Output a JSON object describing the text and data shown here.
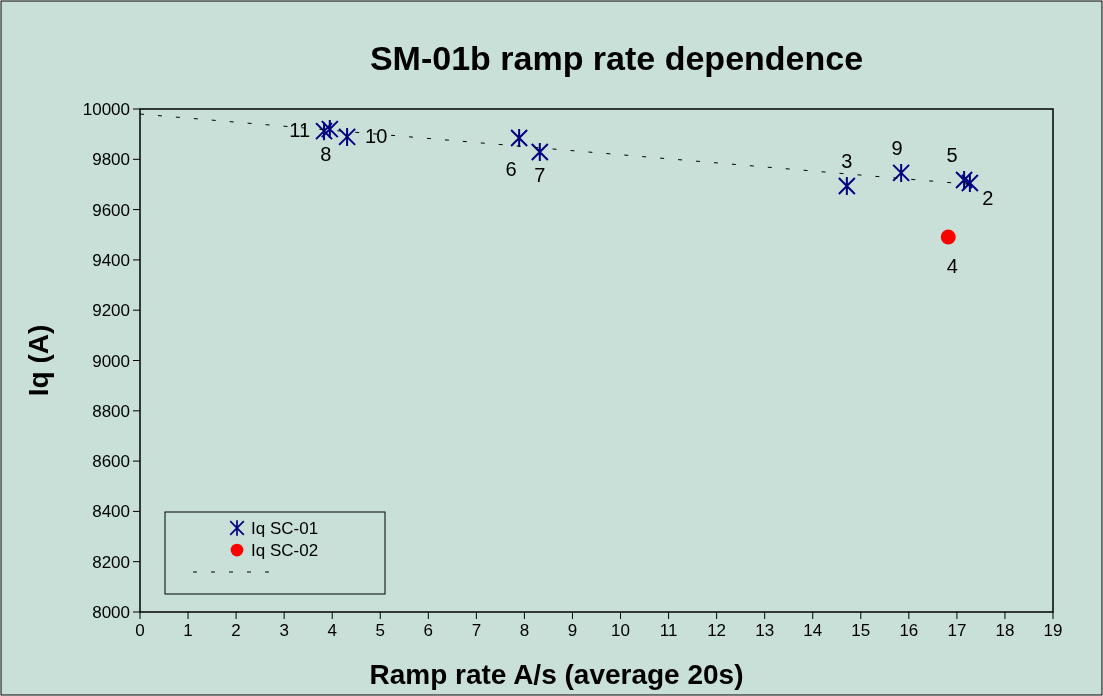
{
  "chart_data": {
    "type": "scatter",
    "title": "SM-01b ramp rate dependence",
    "xlabel": "Ramp rate A/s (average 20s)",
    "ylabel": "Iq (A)",
    "xlim": [
      0,
      19
    ],
    "xticks": [
      0,
      1,
      2,
      3,
      4,
      5,
      6,
      7,
      8,
      9,
      10,
      11,
      12,
      13,
      14,
      15,
      16,
      17,
      18,
      19
    ],
    "ylim": [
      8000,
      10000
    ],
    "yticks": [
      8000,
      8200,
      8400,
      8600,
      8800,
      9000,
      9200,
      9400,
      9600,
      9800,
      10000
    ],
    "grid": false,
    "legend": "bottom left",
    "series": [
      {
        "name": "Iq SC-01",
        "color": "#000080",
        "marker": "cross",
        "x": [
          17.27,
          14.71,
          17.15,
          7.89,
          8.32,
          3.95,
          15.84,
          4.31,
          3.83
        ],
        "values": [
          9706,
          9694,
          9718,
          9885,
          9829,
          9920,
          9746,
          9889,
          9912
        ]
      },
      {
        "name": "Iq SC-02",
        "color": "#ff0000",
        "marker": "circle",
        "x": [
          16.82
        ],
        "values": [
          9491
        ]
      },
      {
        "type": "line",
        "color": "#000000",
        "line_style": "dashed",
        "marker": "none",
        "x": [
          0,
          17.3
        ],
        "values": [
          9980,
          9700
        ]
      }
    ],
    "annotations": [
      {
        "text": "2",
        "x": 17.27,
        "y": 9706
      },
      {
        "text": "3",
        "x": 14.71,
        "y": 9694
      },
      {
        "text": "4",
        "x": 16.82,
        "y": 9491
      },
      {
        "text": "5",
        "x": 17.15,
        "y": 9718
      },
      {
        "text": "6",
        "x": 7.89,
        "y": 9885
      },
      {
        "text": "7",
        "x": 8.32,
        "y": 9829
      },
      {
        "text": "8",
        "x": 3.95,
        "y": 9920
      },
      {
        "text": "9",
        "x": 15.84,
        "y": 9746
      },
      {
        "text": "10",
        "x": 4.31,
        "y": 9889
      },
      {
        "text": "11",
        "x": 3.83,
        "y": 9912
      }
    ]
  }
}
